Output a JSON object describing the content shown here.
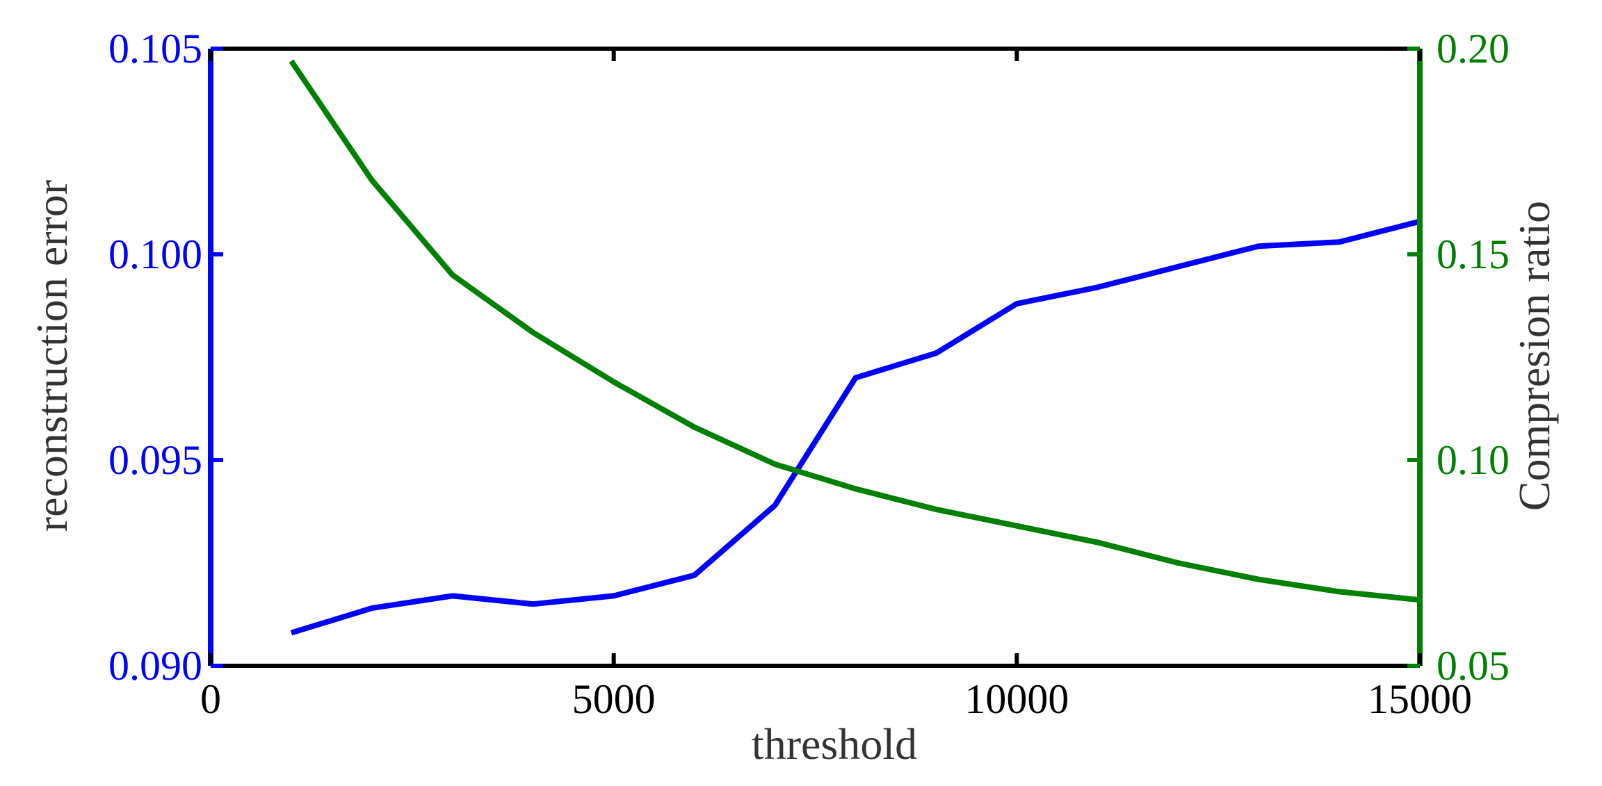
{
  "colors": {
    "left_axis": "#0000ff",
    "right_axis": "#008000",
    "frame": "#000000",
    "label_text": "#333333"
  },
  "chart_data": {
    "type": "line",
    "title": "",
    "xlabel": "threshold",
    "ylabel_left": "reconstruction error",
    "ylabel_right": "Compresion ratio",
    "xlim": [
      0,
      15000
    ],
    "ylim_left": [
      0.09,
      0.105
    ],
    "ylim_right": [
      0.05,
      0.2
    ],
    "grid": false,
    "x_ticks": [
      {
        "value": 0,
        "label": "0"
      },
      {
        "value": 5000,
        "label": "5000"
      },
      {
        "value": 10000,
        "label": "10000"
      },
      {
        "value": 15000,
        "label": "15000"
      }
    ],
    "y_ticks_left": [
      {
        "value": 0.09,
        "label": "0.090"
      },
      {
        "value": 0.095,
        "label": "0.095"
      },
      {
        "value": 0.1,
        "label": "0.100"
      },
      {
        "value": 0.105,
        "label": "0.105"
      }
    ],
    "y_ticks_right": [
      {
        "value": 0.05,
        "label": "0.05"
      },
      {
        "value": 0.1,
        "label": "0.10"
      },
      {
        "value": 0.15,
        "label": "0.15"
      },
      {
        "value": 0.2,
        "label": "0.20"
      }
    ],
    "x": [
      1000,
      2000,
      3000,
      4000,
      5000,
      6000,
      7000,
      8000,
      9000,
      10000,
      11000,
      12000,
      13000,
      14000,
      15000
    ],
    "series": [
      {
        "axis": "left",
        "color": "#0000ff",
        "values": [
          0.0908,
          0.0914,
          0.0917,
          0.0915,
          0.0917,
          0.0922,
          0.0939,
          0.097,
          0.0976,
          0.0988,
          0.0992,
          0.0997,
          0.1002,
          0.1003,
          0.1008
        ]
      },
      {
        "axis": "right",
        "color": "#008000",
        "values": [
          0.197,
          0.168,
          0.145,
          0.131,
          0.119,
          0.108,
          0.099,
          0.093,
          0.088,
          0.084,
          0.08,
          0.075,
          0.071,
          0.068,
          0.066
        ]
      }
    ]
  }
}
